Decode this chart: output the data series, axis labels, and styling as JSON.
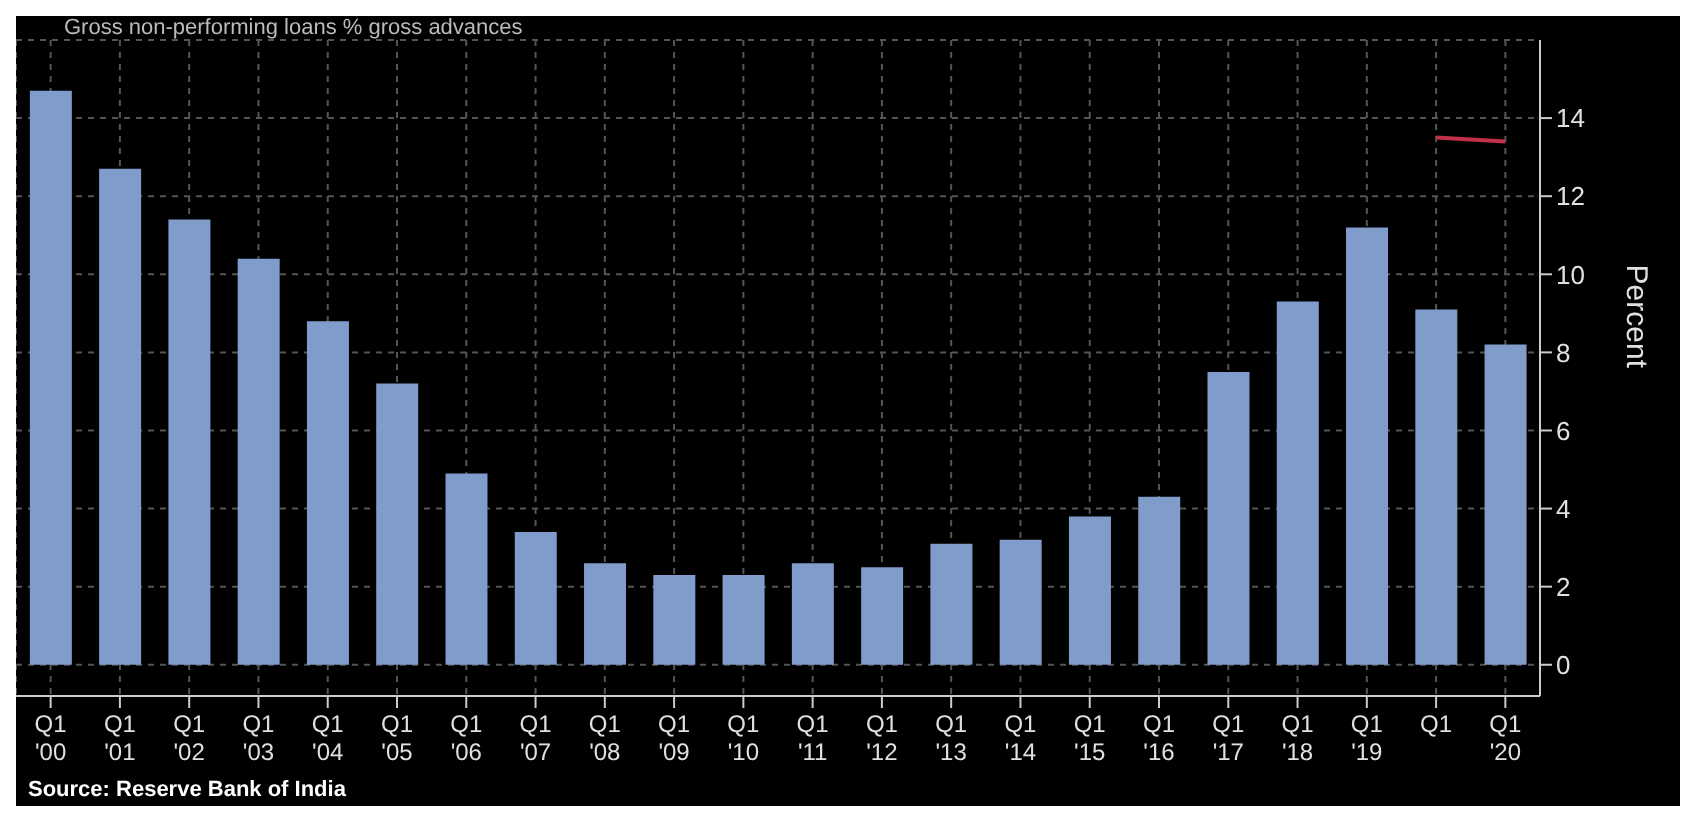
{
  "chart_data": {
    "type": "bar",
    "title": "Gross non-performing loans % gross advances",
    "ylabel": "Percent",
    "categories": [
      "Q1\n'00",
      "Q1\n'01",
      "Q1\n'02",
      "Q1\n'03",
      "Q1\n'04",
      "Q1\n'05",
      "Q1\n'06",
      "Q1\n'07",
      "Q1\n'08",
      "Q1\n'09",
      "Q1\n'10",
      "Q1\n'11",
      "Q1\n'12",
      "Q1\n'13",
      "Q1\n'14",
      "Q1\n'15",
      "Q1\n'16",
      "Q1\n'17",
      "Q1\n'18",
      "Q1\n'19",
      "Q1",
      "Q1\n'20"
    ],
    "series": [
      {
        "color": "#7f9ccb",
        "values": [
          14.7,
          12.7,
          11.4,
          10.4,
          8.8,
          7.2,
          4.9,
          3.4,
          2.6,
          2.3,
          2.3,
          2.6,
          2.5,
          3.1,
          3.2,
          3.8,
          4.3,
          7.5,
          9.3,
          11.2,
          9.1,
          8.2
        ]
      },
      {
        "type": "line",
        "color": "#c0304a",
        "values": [
          null,
          null,
          null,
          null,
          null,
          null,
          null,
          null,
          null,
          null,
          null,
          null,
          null,
          null,
          null,
          null,
          null,
          null,
          null,
          null,
          13.5,
          13.4
        ]
      }
    ],
    "ylim": [
      -0.8,
      16
    ],
    "yticks": [
      0,
      2,
      4,
      6,
      8,
      10,
      12,
      14
    ],
    "grid": true,
    "legend": false,
    "annotations": [
      "Source: Reserve Bank of India"
    ]
  }
}
